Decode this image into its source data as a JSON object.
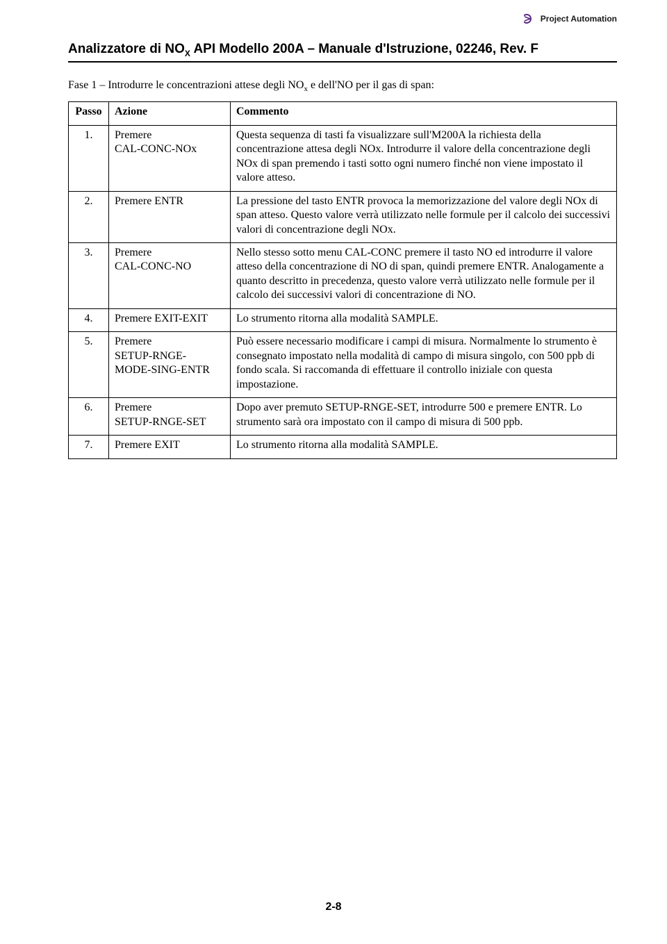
{
  "brand": {
    "name": "Project Automation",
    "logo_color": "#5a2a84"
  },
  "doc_title_prefix": "Analizzatore di NO",
  "doc_title_sub": "X",
  "doc_title_suffix": " API Modello 200A – Manuale d'Istruzione, 02246, Rev. F",
  "intro_prefix": "Fase 1 – Introdurre le concentrazioni attese degli NO",
  "intro_sub": "x",
  "intro_suffix": " e dell'NO per il gas di span:",
  "headers": {
    "passo": "Passo",
    "azione": "Azione",
    "commento": "Commento"
  },
  "rows": [
    {
      "n": "1.",
      "action": "Premere\nCAL-CONC-NOx",
      "comment": "Questa sequenza di tasti fa visualizzare sull'M200A la richiesta della concentrazione attesa degli NOx. Introdurre il valore della concentrazione degli NOx di span premendo i tasti sotto ogni numero finché non viene impostato il valore atteso."
    },
    {
      "n": "2.",
      "action": "Premere ENTR",
      "comment": "La pressione del tasto ENTR provoca la memorizzazione del valore degli NOx di span atteso. Questo valore verrà utilizzato nelle formule per il calcolo dei successivi valori di concentrazione degli NOx."
    },
    {
      "n": "3.",
      "action": "Premere\nCAL-CONC-NO",
      "comment": "Nello stesso sotto menu CAL-CONC premere il tasto NO ed introdurre il valore atteso della concentrazione di NO di span, quindi premere ENTR. Analogamente a quanto descritto in precedenza, questo valore verrà utilizzato nelle formule per il calcolo dei successivi valori di concentrazione di NO."
    },
    {
      "n": "4.",
      "action": "Premere EXIT-EXIT",
      "comment": "Lo strumento ritorna alla modalità SAMPLE."
    },
    {
      "n": "5.",
      "action": "Premere\nSETUP-RNGE-\nMODE-SING-ENTR",
      "comment": "Può essere necessario modificare i campi di misura. Normalmente lo strumento è consegnato impostato nella modalità di campo di misura singolo, con 500 ppb di fondo scala. Si raccomanda di effettuare il controllo iniziale con questa impostazione."
    },
    {
      "n": "6.",
      "action": "Premere\nSETUP-RNGE-SET",
      "comment": "Dopo aver premuto SETUP-RNGE-SET, introdurre 500 e premere ENTR. Lo strumento sarà ora impostato con il campo di misura di 500 ppb."
    },
    {
      "n": "7.",
      "action": "Premere EXIT",
      "comment": "Lo strumento ritorna alla modalità SAMPLE."
    }
  ],
  "page_number": "2-8",
  "colors": {
    "text": "#000000",
    "background": "#ffffff",
    "rule": "#000000",
    "border": "#000000"
  },
  "fonts": {
    "body_family": "Times New Roman",
    "heading_family": "Arial",
    "body_size_pt": 12,
    "heading_size_pt": 14
  }
}
